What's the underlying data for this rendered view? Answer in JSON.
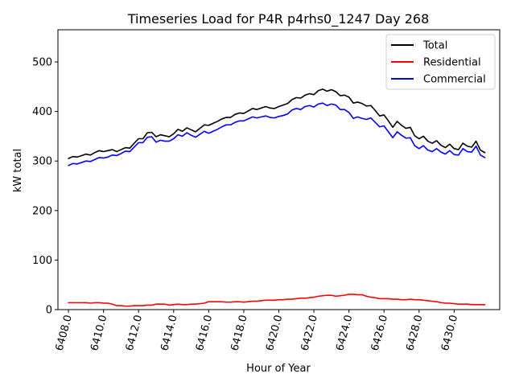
{
  "chart_data": {
    "type": "line",
    "title": "Timeseries Load for P4R p4rhs0_1247  Day 268",
    "xlabel": "Hour of Year",
    "ylabel": "kW total",
    "xlim": [
      6407.4,
      6432.6
    ],
    "ylim": [
      0,
      565
    ],
    "grid": false,
    "legend_position": "top-right",
    "x_ticks": [
      6408,
      6410,
      6412,
      6414,
      6416,
      6418,
      6420,
      6422,
      6424,
      6426,
      6428,
      6430
    ],
    "x_tick_labels": [
      "6408.0",
      "6410.0",
      "6412.0",
      "6414.0",
      "6416.0",
      "6418.0",
      "6420.0",
      "6422.0",
      "6424.0",
      "6426.0",
      "6428.0",
      "6430.0"
    ],
    "y_ticks": [
      0,
      100,
      200,
      300,
      400,
      500
    ],
    "y_tick_labels": [
      "0",
      "100",
      "200",
      "300",
      "400",
      "500"
    ],
    "x_start": 6408,
    "x_step": 0.25,
    "series": [
      {
        "name": "Total",
        "color": "#000000",
        "values": [
          305,
          309,
          308,
          311,
          314,
          312,
          317,
          321,
          319,
          321,
          323,
          319,
          323,
          327,
          326,
          336,
          345,
          345,
          357,
          358,
          349,
          353,
          351,
          349,
          355,
          364,
          360,
          367,
          363,
          359,
          366,
          373,
          372,
          376,
          380,
          385,
          388,
          388,
          394,
          397,
          396,
          401,
          406,
          404,
          407,
          410,
          407,
          406,
          410,
          413,
          416,
          424,
          428,
          427,
          433,
          436,
          434,
          442,
          445,
          441,
          444,
          440,
          432,
          433,
          429,
          417,
          419,
          416,
          411,
          412,
          402,
          391,
          393,
          381,
          368,
          380,
          372,
          366,
          368,
          351,
          345,
          350,
          340,
          336,
          341,
          332,
          327,
          334,
          325,
          323,
          336,
          330,
          328,
          340,
          322,
          317
        ]
      },
      {
        "name": "Residential",
        "color": "#ff0000",
        "values": [
          14,
          14,
          14,
          14,
          14,
          13,
          14,
          14,
          13,
          13,
          11,
          8,
          8,
          7,
          7,
          8,
          8,
          8,
          9,
          9,
          11,
          11,
          11,
          9,
          10,
          11,
          10,
          10,
          11,
          11,
          12,
          13,
          16,
          16,
          16,
          16,
          15,
          15,
          16,
          16,
          15,
          16,
          17,
          17,
          18,
          19,
          19,
          19,
          20,
          20,
          21,
          21,
          22,
          23,
          23,
          24,
          25,
          27,
          28,
          29,
          29,
          27,
          28,
          29,
          31,
          31,
          30,
          30,
          27,
          25,
          24,
          22,
          22,
          22,
          21,
          21,
          20,
          20,
          21,
          20,
          20,
          19,
          18,
          17,
          16,
          14,
          13,
          13,
          12,
          11,
          11,
          11,
          10,
          10,
          10,
          10
        ]
      },
      {
        "name": "Commercial",
        "color": "#0000ff",
        "values": [
          291,
          295,
          294,
          297,
          300,
          299,
          303,
          307,
          306,
          308,
          312,
          311,
          315,
          320,
          319,
          328,
          337,
          337,
          348,
          349,
          338,
          342,
          340,
          340,
          345,
          353,
          350,
          357,
          352,
          348,
          354,
          360,
          356,
          360,
          364,
          369,
          373,
          373,
          378,
          381,
          381,
          385,
          389,
          387,
          389,
          391,
          388,
          387,
          390,
          392,
          395,
          403,
          406,
          404,
          410,
          412,
          409,
          415,
          417,
          412,
          415,
          413,
          404,
          404,
          398,
          386,
          389,
          386,
          384,
          387,
          378,
          369,
          371,
          359,
          347,
          359,
          352,
          346,
          347,
          331,
          325,
          331,
          322,
          319,
          325,
          318,
          314,
          321,
          313,
          312,
          325,
          319,
          318,
          330,
          312,
          307
        ]
      }
    ]
  }
}
